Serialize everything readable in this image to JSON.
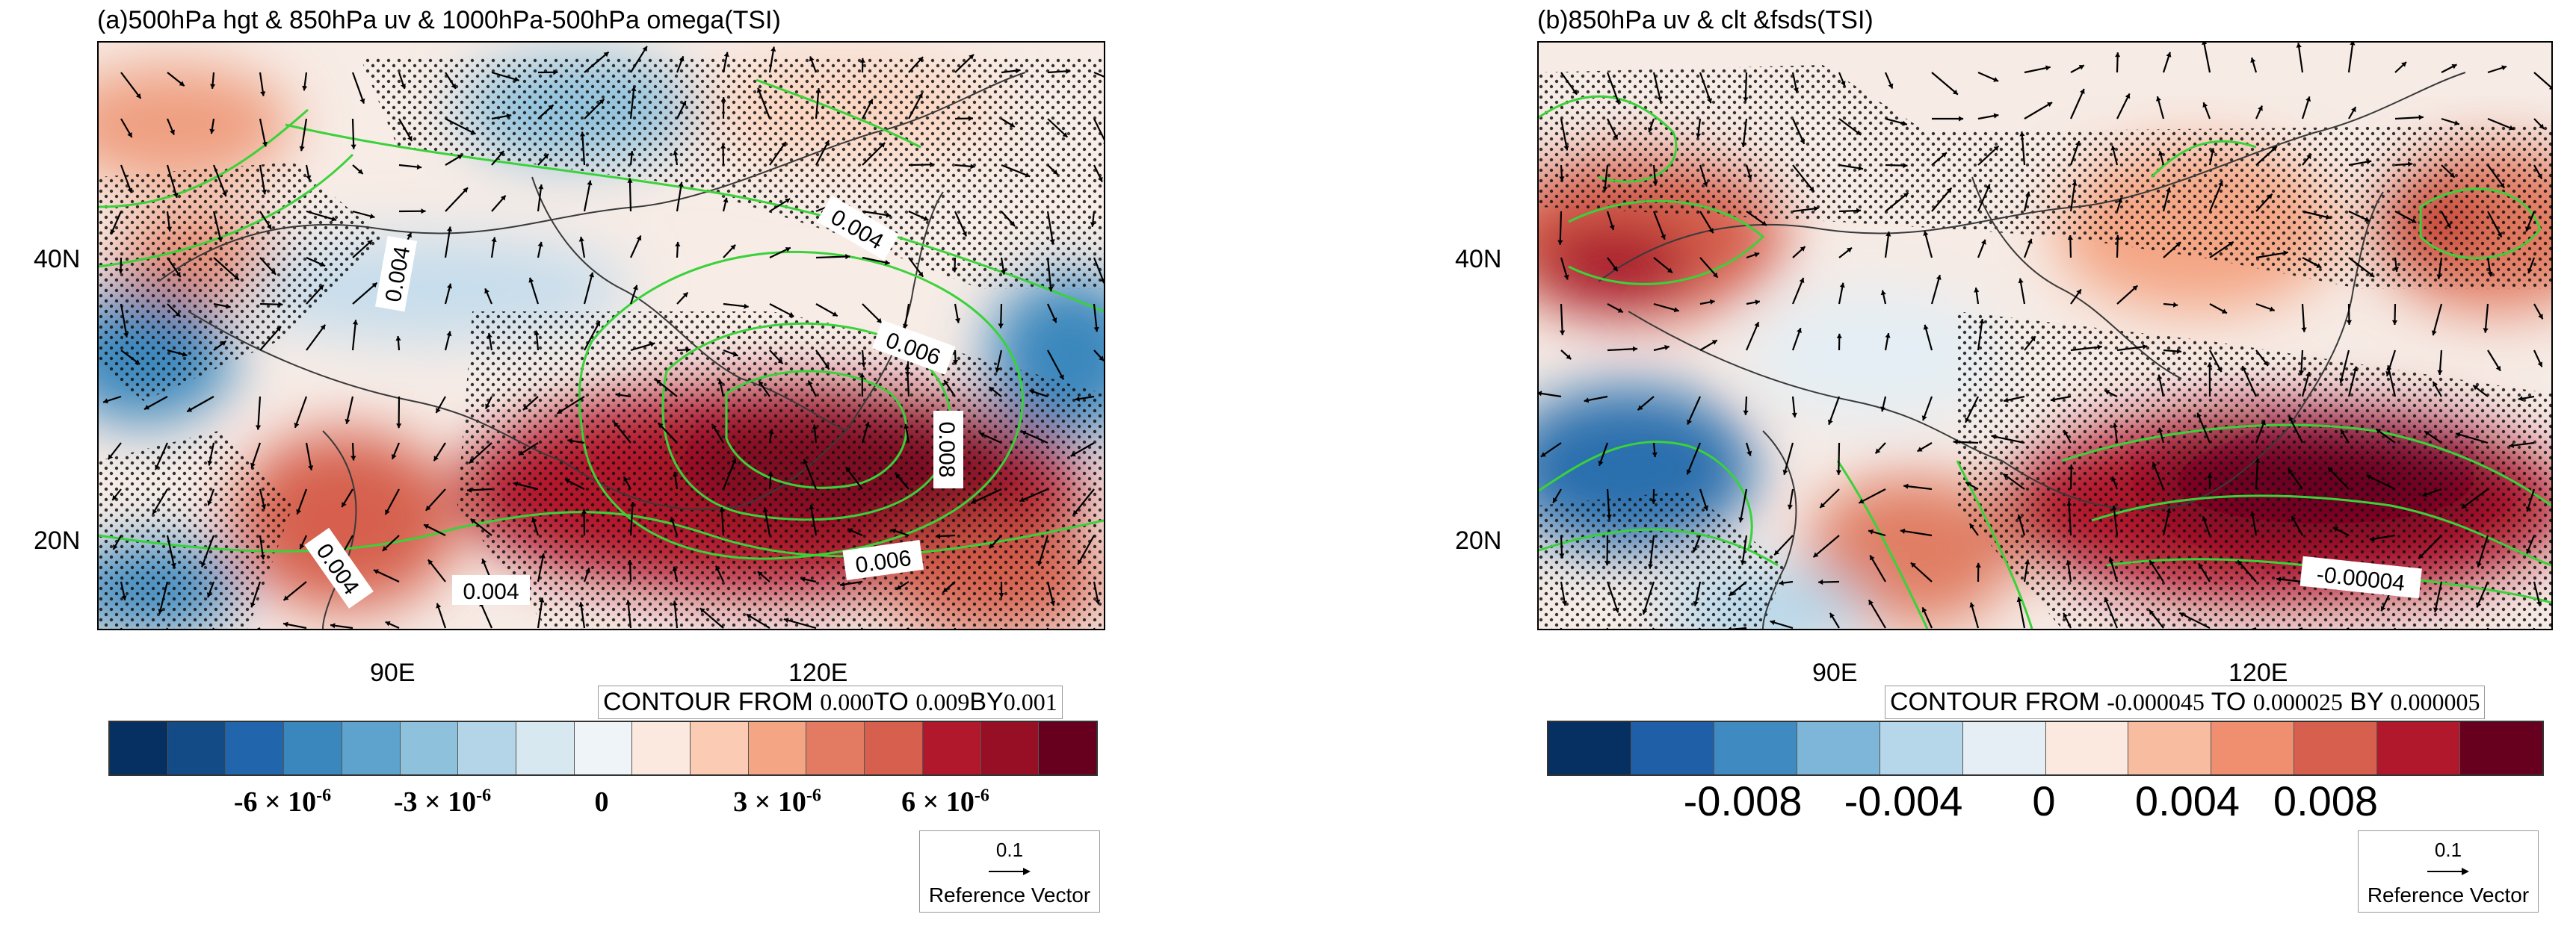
{
  "panels": [
    {
      "title": "(a)500hPa hgt & 850hPa uv & 1000hPa-500hPa omega(TSI)",
      "lat_labels": [
        "40N",
        "20N"
      ],
      "lon_labels": [
        "90E",
        "120E"
      ],
      "contour_info": {
        "prefix": "CONTOUR FROM",
        "from": "0.000",
        "to_word": "TO",
        "to": "0.009",
        "by_word": "BY",
        "by": "0.001"
      },
      "contour_labels": [
        "0.004",
        "0.004",
        "0.006",
        "0.008",
        "0.004",
        "0.004",
        "0.006"
      ],
      "colorbar": {
        "colors": [
          "#053061",
          "#134b87",
          "#2166ac",
          "#3a87bd",
          "#5da3cd",
          "#8ec1dc",
          "#b4d5e7",
          "#d7e8f1",
          "#eef4f7",
          "#fbe9e0",
          "#fbcbb3",
          "#f4a584",
          "#e27b62",
          "#d6604d",
          "#b2182b",
          "#960f25",
          "#67001f"
        ],
        "labels": [
          "-6 × 10",
          "-3 × 10",
          "0",
          "3 × 10",
          "6 × 10"
        ],
        "exponents": [
          "-6",
          "-6",
          "",
          "-6",
          "-6"
        ]
      },
      "ref_vector": {
        "value": "0.1",
        "caption": "Reference Vector"
      }
    },
    {
      "title": "(b)850hPa uv & clt &fsds(TSI)",
      "lat_labels": [
        "40N",
        "20N"
      ],
      "lon_labels": [
        "90E",
        "120E"
      ],
      "contour_info": {
        "prefix": "CONTOUR FROM",
        "from": "-0.000045",
        "to_word": "TO",
        "to": "0.000025",
        "by_word": "BY",
        "by": "0.000005"
      },
      "contour_labels": [
        "-0.00004"
      ],
      "colorbar": {
        "colors": [
          "#053061",
          "#1f5fa8",
          "#3f8bc1",
          "#7db6d8",
          "#b6d7ea",
          "#e4eef4",
          "#fbe8df",
          "#f8bda0",
          "#ef8f6f",
          "#d6604d",
          "#b2182b",
          "#67001f"
        ],
        "labels": [
          "-0.008",
          "-0.004",
          "0",
          "0.004",
          "0.008"
        ]
      },
      "ref_vector": {
        "value": "0.1",
        "caption": "Reference Vector"
      }
    }
  ]
}
